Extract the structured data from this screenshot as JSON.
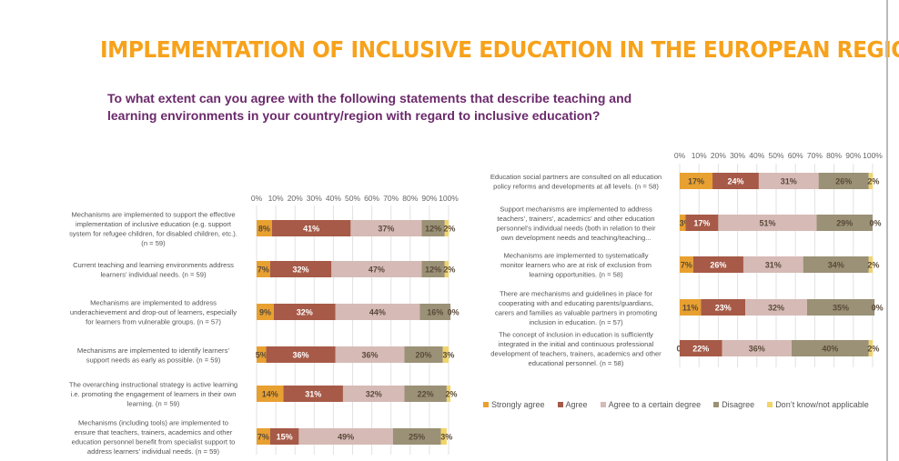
{
  "title": "IMPLEMENTATION OF INCLUSIVE EDUCATION IN THE EUROPEAN REGION",
  "subtitle": "To what extent can you agree with the following statements that describe teaching and learning environments in your country/region with regard to inclusive education?",
  "legend": [
    {
      "name": "Strongly agree",
      "color": "#E8A030"
    },
    {
      "name": "Agree",
      "color": "#A65A47"
    },
    {
      "name": "Agree  to a certain degree",
      "color": "#D6BAB6"
    },
    {
      "name": "Disagree",
      "color": "#9A9176"
    },
    {
      "name": "Don’t know/not applicable",
      "color": "#F1D46A"
    }
  ],
  "chart_data": [
    {
      "type": "stacked-bar-horizontal",
      "xlim": [
        0,
        100
      ],
      "ticks": [
        "0%",
        "10%",
        "20%",
        "30%",
        "40%",
        "50%",
        "60%",
        "70%",
        "80%",
        "90%",
        "100%"
      ],
      "grid": true,
      "series": [
        "Strongly agree",
        "Agree",
        "Agree  to a certain degree",
        "Disagree",
        "Don’t know/not applicable"
      ],
      "categories": [
        [
          "Mechanisms are implemented to support the effective",
          "implementation of inclusive education (e.g. support",
          "system for refugee children, for disabled children, etc.).",
          "(n = 59)"
        ],
        [
          "Current teaching and learning environments address",
          "learners’ individual needs. (n = 59)"
        ],
        [
          "Mechanisms are implemented to address",
          "underachievement and drop-out of learners, especially",
          "for learners from vulnerable groups. (n = 57)"
        ],
        [
          "Mechanisms are implemented to identify learners’",
          "support needs as early as possible. (n = 59)"
        ],
        [
          "The overarching instructional strategy is active learning",
          "i.e. promoting the engagement of learners in their own",
          "learning. (n = 59)"
        ],
        [
          "Mechanisms (including tools) are implemented to",
          "ensure that teachers, trainers, academics and other",
          "education personnel benefit from specialist support to",
          "address learners’ individual needs. (n = 59)"
        ]
      ],
      "values": [
        [
          8,
          41,
          37,
          12,
          2
        ],
        [
          7,
          32,
          47,
          12,
          2
        ],
        [
          9,
          32,
          44,
          16,
          0
        ],
        [
          5,
          36,
          36,
          20,
          3
        ],
        [
          14,
          31,
          32,
          22,
          2
        ],
        [
          7,
          15,
          49,
          25,
          3
        ]
      ]
    },
    {
      "type": "stacked-bar-horizontal",
      "xlim": [
        0,
        100
      ],
      "ticks": [
        "0%",
        "10%",
        "20%",
        "30%",
        "40%",
        "50%",
        "60%",
        "70%",
        "80%",
        "90%",
        "100%"
      ],
      "grid": true,
      "series": [
        "Strongly agree",
        "Agree",
        "Agree  to a certain degree",
        "Disagree",
        "Don’t know/not applicable"
      ],
      "categories": [
        [
          "Education social partners are consulted on all education",
          "policy reforms and developments at all levels. (n = 58)"
        ],
        [
          "Support mechanisms are implemented to address",
          "teachers’, trainers’, academics’ and other education",
          "personnel’s individual needs (both in relation to their",
          "own development needs and teaching/teaching..."
        ],
        [
          "Mechanisms are implemented to systematically",
          "monitor learners who are at risk of exclusion from",
          "learning opportunities. (n = 58)"
        ],
        [
          "There are mechanisms and guidelines in place for",
          "cooperating with and educating parents/guardians,",
          "carers and families as valuable partners in promoting",
          "inclusion in education. (n = 57)"
        ],
        [
          "The concept of inclusion in education is sufficiently",
          "integrated in the initial and continuous professional",
          "development of teachers, trainers, academics and other",
          "educational personnel.  (n = 58)"
        ]
      ],
      "values": [
        [
          17,
          24,
          31,
          26,
          2
        ],
        [
          3,
          17,
          51,
          29,
          0
        ],
        [
          7,
          26,
          31,
          34,
          2
        ],
        [
          11,
          23,
          32,
          35,
          0
        ],
        [
          0,
          22,
          36,
          40,
          2
        ]
      ]
    }
  ]
}
